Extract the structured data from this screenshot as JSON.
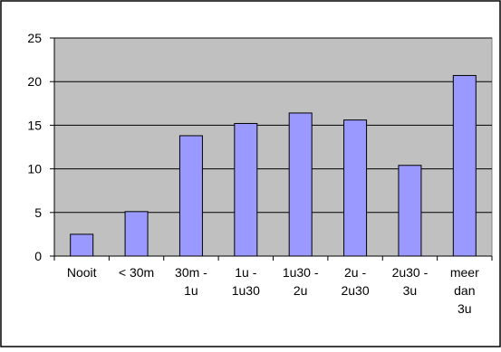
{
  "chart_data": {
    "type": "bar",
    "categories": [
      [
        "Nooit"
      ],
      [
        "< 30m"
      ],
      [
        "30m -",
        "1u"
      ],
      [
        "1u -",
        "1u30"
      ],
      [
        "1u30 -",
        "2u"
      ],
      [
        "2u -",
        "2u30"
      ],
      [
        "2u30 -",
        "3u"
      ],
      [
        "meer",
        "dan",
        "3u"
      ]
    ],
    "values": [
      2.5,
      5.1,
      13.8,
      15.2,
      16.4,
      15.6,
      10.4,
      20.7
    ],
    "ylim": [
      0,
      25
    ],
    "yticks": [
      0,
      5,
      10,
      15,
      20,
      25
    ],
    "grid": true,
    "title": "",
    "xlabel": "",
    "ylabel": "",
    "colors": {
      "bar_fill": "#9999ff",
      "bar_stroke": "#000000",
      "plot_bg": "#c0c0c0",
      "gridline": "#000000",
      "page_bg": "#ffffff"
    }
  }
}
